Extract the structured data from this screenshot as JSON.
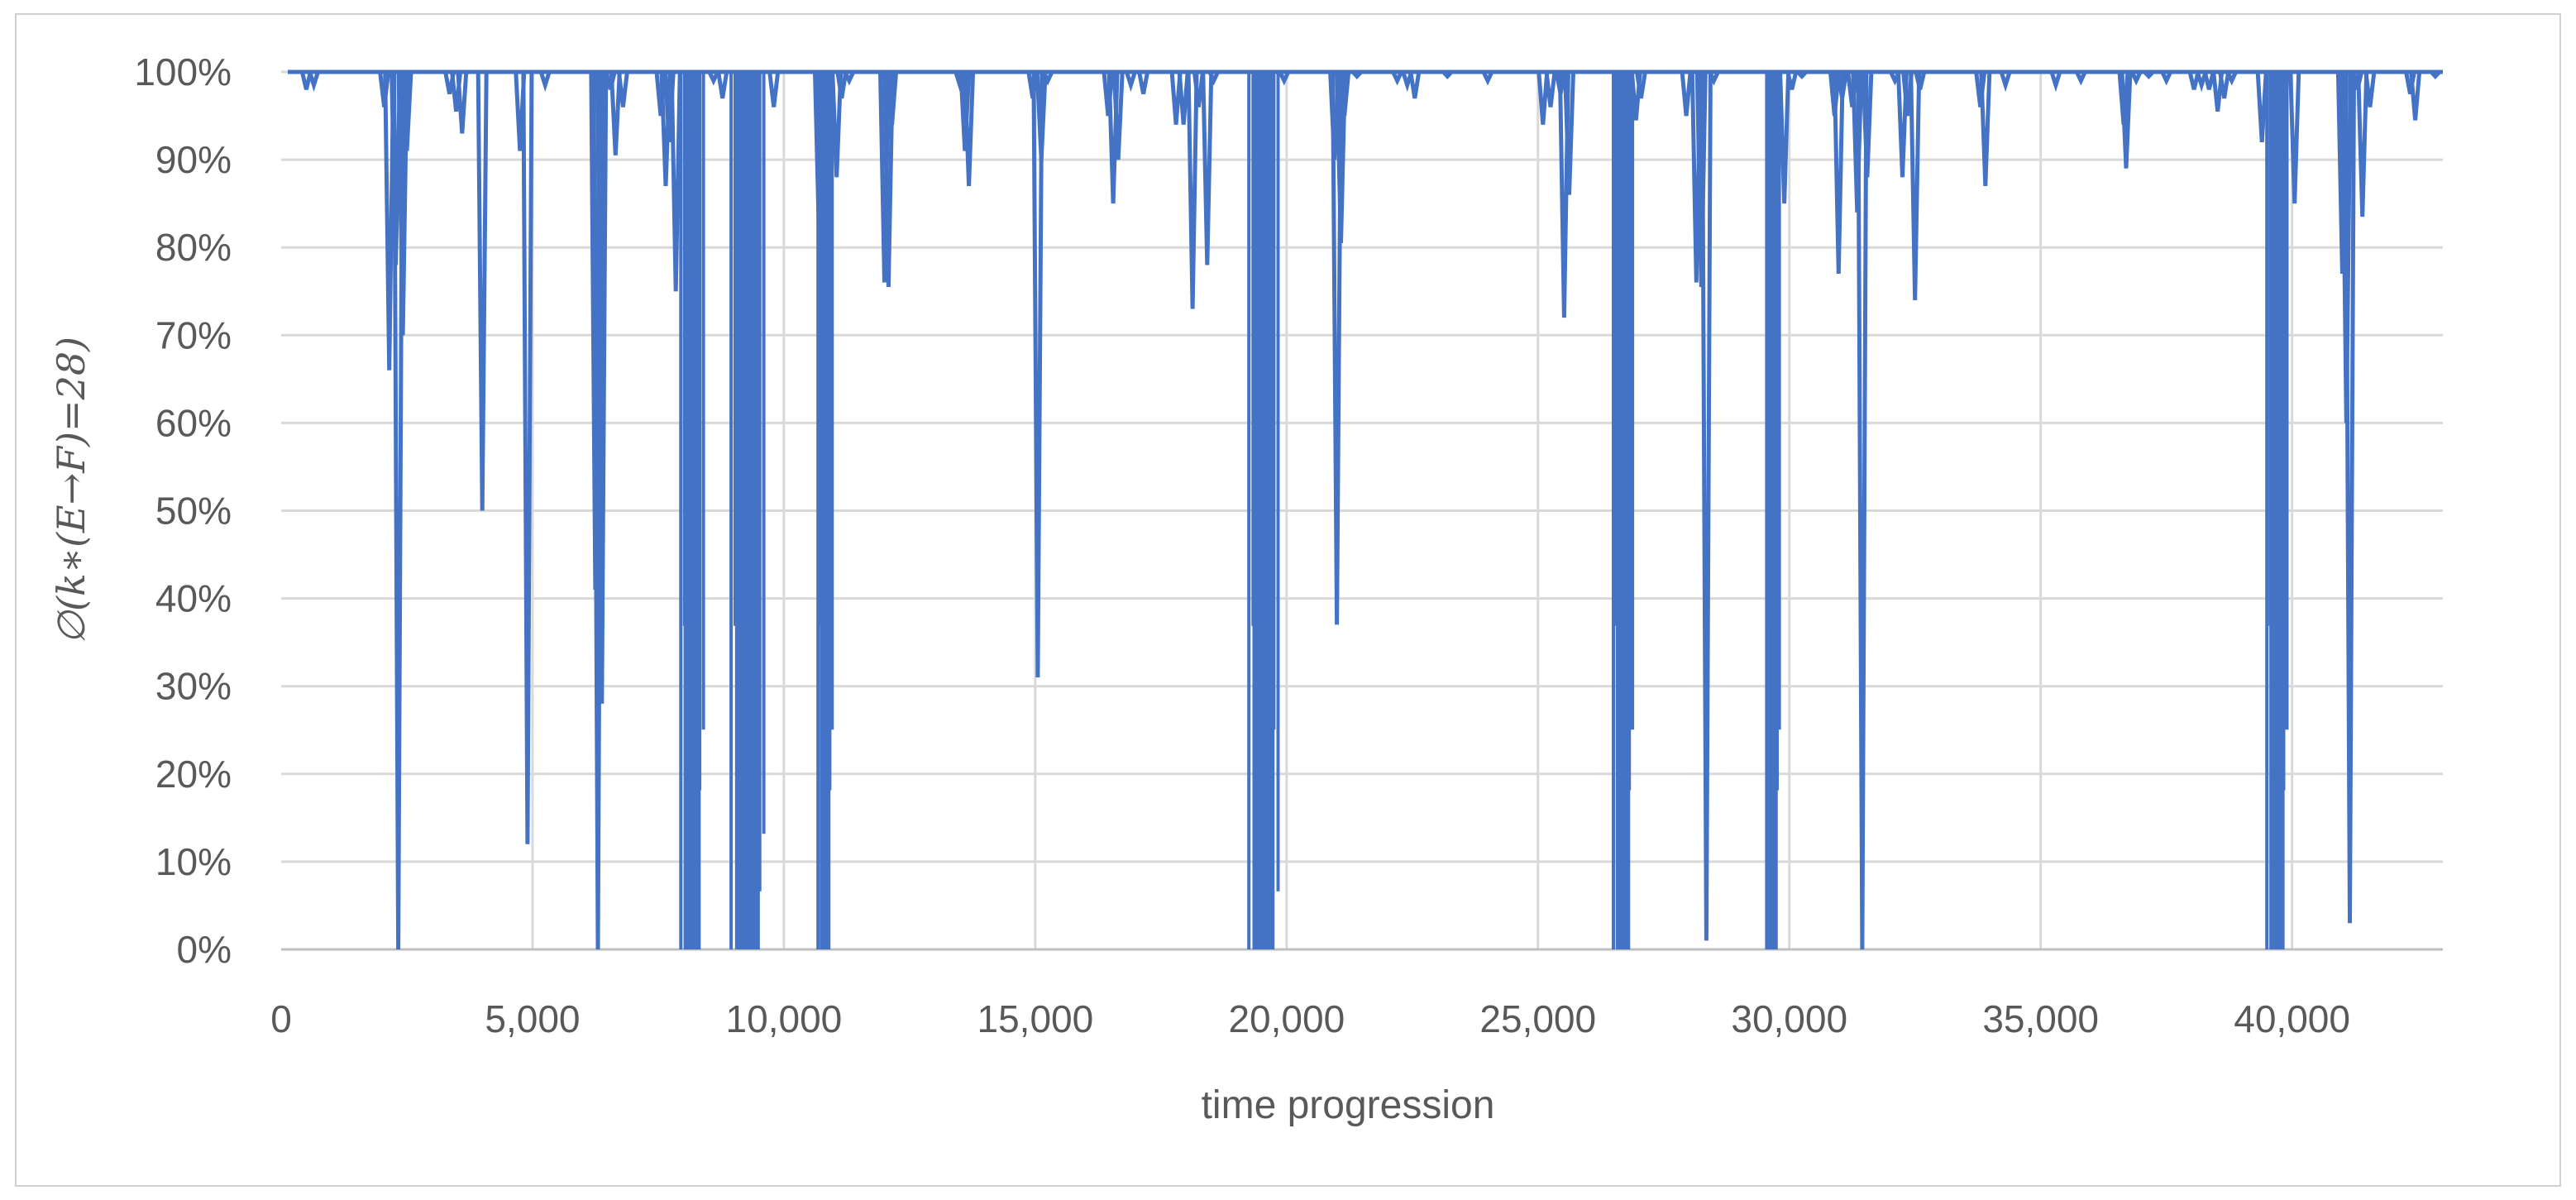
{
  "chart_data": {
    "type": "line",
    "title": "",
    "xlabel": "time progression",
    "ylabel": "∅(k∗(E→F)=28)",
    "xlim": [
      0,
      43000
    ],
    "ylim": [
      0,
      100
    ],
    "x_ticks": [
      0,
      5000,
      10000,
      15000,
      20000,
      25000,
      30000,
      35000,
      40000
    ],
    "x_tick_labels": [
      "0",
      "5,000",
      "10,000",
      "15,000",
      "20,000",
      "25,000",
      "30,000",
      "35,000",
      "40,000"
    ],
    "y_ticks": [
      0,
      10,
      20,
      30,
      40,
      50,
      60,
      70,
      80,
      90,
      100
    ],
    "y_tick_labels": [
      "0%",
      "10%",
      "20%",
      "30%",
      "40%",
      "50%",
      "60%",
      "70%",
      "80%",
      "90%",
      "100%"
    ],
    "grid": true,
    "legend": "none",
    "series_color": "#4472c4",
    "baseline": 100,
    "dense_bands": [
      {
        "x_start": 7950,
        "x_end": 8400,
        "min": 0
      },
      {
        "x_start": 8950,
        "x_end": 9600,
        "min": 0
      },
      {
        "x_start": 10680,
        "x_end": 10960,
        "min": 0
      },
      {
        "x_start": 19250,
        "x_end": 19830,
        "min": 0
      },
      {
        "x_start": 26500,
        "x_end": 26880,
        "min": 0
      },
      {
        "x_start": 29550,
        "x_end": 29800,
        "min": 0
      },
      {
        "x_start": 39500,
        "x_end": 39900,
        "min": 0
      }
    ],
    "dips": [
      {
        "x": 500,
        "y": 98
      },
      {
        "x": 650,
        "y": 98.5
      },
      {
        "x": 2050,
        "y": 96
      },
      {
        "x": 2150,
        "y": 66
      },
      {
        "x": 2280,
        "y": 78
      },
      {
        "x": 2330,
        "y": 0
      },
      {
        "x": 2420,
        "y": 70
      },
      {
        "x": 2500,
        "y": 91
      },
      {
        "x": 3350,
        "y": 97.5
      },
      {
        "x": 3480,
        "y": 95.5
      },
      {
        "x": 3600,
        "y": 93
      },
      {
        "x": 4000,
        "y": 50
      },
      {
        "x": 4750,
        "y": 91
      },
      {
        "x": 4900,
        "y": 12
      },
      {
        "x": 5250,
        "y": 98.5
      },
      {
        "x": 6250,
        "y": 41
      },
      {
        "x": 6300,
        "y": 0
      },
      {
        "x": 6380,
        "y": 28
      },
      {
        "x": 6550,
        "y": 98
      },
      {
        "x": 6650,
        "y": 90.5
      },
      {
        "x": 6800,
        "y": 96
      },
      {
        "x": 7550,
        "y": 95
      },
      {
        "x": 7650,
        "y": 87
      },
      {
        "x": 7720,
        "y": 92
      },
      {
        "x": 7850,
        "y": 75
      },
      {
        "x": 8600,
        "y": 99
      },
      {
        "x": 8780,
        "y": 97
      },
      {
        "x": 9800,
        "y": 96
      },
      {
        "x": 10700,
        "y": 81
      },
      {
        "x": 11050,
        "y": 88
      },
      {
        "x": 11150,
        "y": 97
      },
      {
        "x": 11300,
        "y": 99
      },
      {
        "x": 12000,
        "y": 76
      },
      {
        "x": 12080,
        "y": 75.5
      },
      {
        "x": 12150,
        "y": 94
      },
      {
        "x": 13500,
        "y": 98.5
      },
      {
        "x": 13600,
        "y": 91
      },
      {
        "x": 13680,
        "y": 87
      },
      {
        "x": 14950,
        "y": 97
      },
      {
        "x": 15050,
        "y": 31
      },
      {
        "x": 15120,
        "y": 90
      },
      {
        "x": 15250,
        "y": 99
      },
      {
        "x": 16450,
        "y": 95
      },
      {
        "x": 16550,
        "y": 85
      },
      {
        "x": 16650,
        "y": 90
      },
      {
        "x": 16900,
        "y": 98.5
      },
      {
        "x": 17150,
        "y": 97.5
      },
      {
        "x": 17800,
        "y": 94
      },
      {
        "x": 17950,
        "y": 94
      },
      {
        "x": 18130,
        "y": 73
      },
      {
        "x": 18250,
        "y": 96
      },
      {
        "x": 18420,
        "y": 78
      },
      {
        "x": 18550,
        "y": 99
      },
      {
        "x": 19950,
        "y": 99
      },
      {
        "x": 20950,
        "y": 90
      },
      {
        "x": 21000,
        "y": 37
      },
      {
        "x": 21080,
        "y": 80.5
      },
      {
        "x": 21150,
        "y": 95
      },
      {
        "x": 21400,
        "y": 99.5
      },
      {
        "x": 22200,
        "y": 99
      },
      {
        "x": 22400,
        "y": 98.5
      },
      {
        "x": 22550,
        "y": 97
      },
      {
        "x": 23200,
        "y": 99.5
      },
      {
        "x": 24000,
        "y": 99
      },
      {
        "x": 25100,
        "y": 94
      },
      {
        "x": 25250,
        "y": 96
      },
      {
        "x": 25450,
        "y": 97.5
      },
      {
        "x": 25520,
        "y": 72
      },
      {
        "x": 25620,
        "y": 86
      },
      {
        "x": 26950,
        "y": 94.5
      },
      {
        "x": 27050,
        "y": 97
      },
      {
        "x": 27950,
        "y": 95
      },
      {
        "x": 28150,
        "y": 76
      },
      {
        "x": 28250,
        "y": 75.5
      },
      {
        "x": 28350,
        "y": 1
      },
      {
        "x": 28500,
        "y": 99
      },
      {
        "x": 29900,
        "y": 85
      },
      {
        "x": 30050,
        "y": 98
      },
      {
        "x": 30250,
        "y": 99.5
      },
      {
        "x": 30900,
        "y": 95
      },
      {
        "x": 30980,
        "y": 77
      },
      {
        "x": 31050,
        "y": 97
      },
      {
        "x": 31250,
        "y": 96
      },
      {
        "x": 31350,
        "y": 84
      },
      {
        "x": 31450,
        "y": 0
      },
      {
        "x": 31550,
        "y": 88
      },
      {
        "x": 32100,
        "y": 99
      },
      {
        "x": 32250,
        "y": 88
      },
      {
        "x": 32350,
        "y": 95
      },
      {
        "x": 32500,
        "y": 74
      },
      {
        "x": 32600,
        "y": 98
      },
      {
        "x": 33800,
        "y": 96
      },
      {
        "x": 33900,
        "y": 87
      },
      {
        "x": 34300,
        "y": 98.5
      },
      {
        "x": 35300,
        "y": 98.5
      },
      {
        "x": 35800,
        "y": 99
      },
      {
        "x": 36650,
        "y": 94
      },
      {
        "x": 36700,
        "y": 89
      },
      {
        "x": 36900,
        "y": 99
      },
      {
        "x": 37150,
        "y": 99.5
      },
      {
        "x": 37500,
        "y": 99
      },
      {
        "x": 38050,
        "y": 98
      },
      {
        "x": 38200,
        "y": 98.5
      },
      {
        "x": 38350,
        "y": 98
      },
      {
        "x": 38520,
        "y": 95.5
      },
      {
        "x": 38650,
        "y": 97
      },
      {
        "x": 38800,
        "y": 99
      },
      {
        "x": 39400,
        "y": 92
      },
      {
        "x": 40050,
        "y": 85
      },
      {
        "x": 41000,
        "y": 77
      },
      {
        "x": 41080,
        "y": 60
      },
      {
        "x": 41150,
        "y": 3
      },
      {
        "x": 41300,
        "y": 98
      },
      {
        "x": 41400,
        "y": 83.5
      },
      {
        "x": 41550,
        "y": 96
      },
      {
        "x": 42350,
        "y": 97.5
      },
      {
        "x": 42450,
        "y": 94.5
      },
      {
        "x": 42850,
        "y": 99.5
      }
    ]
  }
}
